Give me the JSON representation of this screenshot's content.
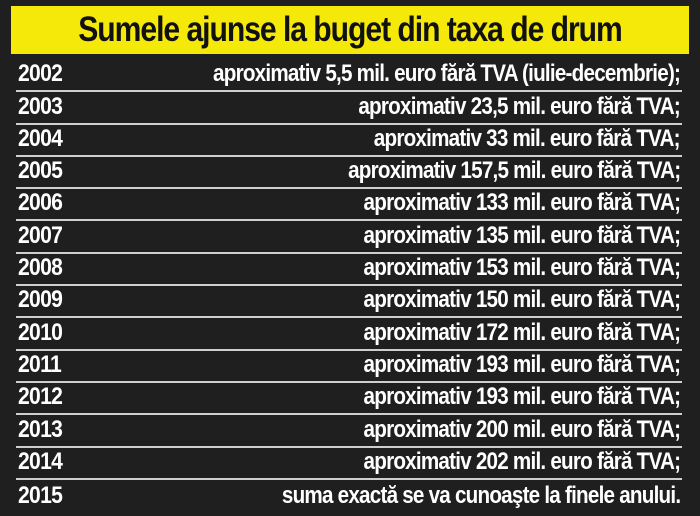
{
  "title": "Sumele ajunse la buget din taxa de drum",
  "colors": {
    "title_background": "#f5e90a",
    "panel_background": "#1f1f1f",
    "text": "#ffffff",
    "divider": "#cfcfcf"
  },
  "rows": [
    {
      "year": "2002",
      "value": "aproximativ 5,5 mil. euro fără TVA (iulie-decembrie);"
    },
    {
      "year": "2003",
      "value": "aproximativ 23,5 mil. euro fără TVA;"
    },
    {
      "year": "2004",
      "value": "aproximativ 33 mil. euro fără TVA;"
    },
    {
      "year": "2005",
      "value": "aproximativ 157,5 mil. euro fără TVA;"
    },
    {
      "year": "2006",
      "value": "aproximativ 133 mil. euro fără TVA;"
    },
    {
      "year": "2007",
      "value": "aproximativ 135 mil. euro fără TVA;"
    },
    {
      "year": "2008",
      "value": "aproximativ 153 mil. euro fără TVA;"
    },
    {
      "year": "2009",
      "value": "aproximativ 150 mil. euro fără TVA;"
    },
    {
      "year": "2010",
      "value": "aproximativ 172 mil. euro fără TVA;"
    },
    {
      "year": "2011",
      "value": "aproximativ 193 mil. euro fără TVA;"
    },
    {
      "year": "2012",
      "value": "aproximativ 193 mil. euro fără TVA;"
    },
    {
      "year": "2013",
      "value": "aproximativ 200 mil. euro fără TVA;"
    },
    {
      "year": "2014",
      "value": "aproximativ 202 mil. euro fără TVA;"
    },
    {
      "year": "2015",
      "value": "suma exactă se va cunoaşte la finele anului."
    }
  ]
}
